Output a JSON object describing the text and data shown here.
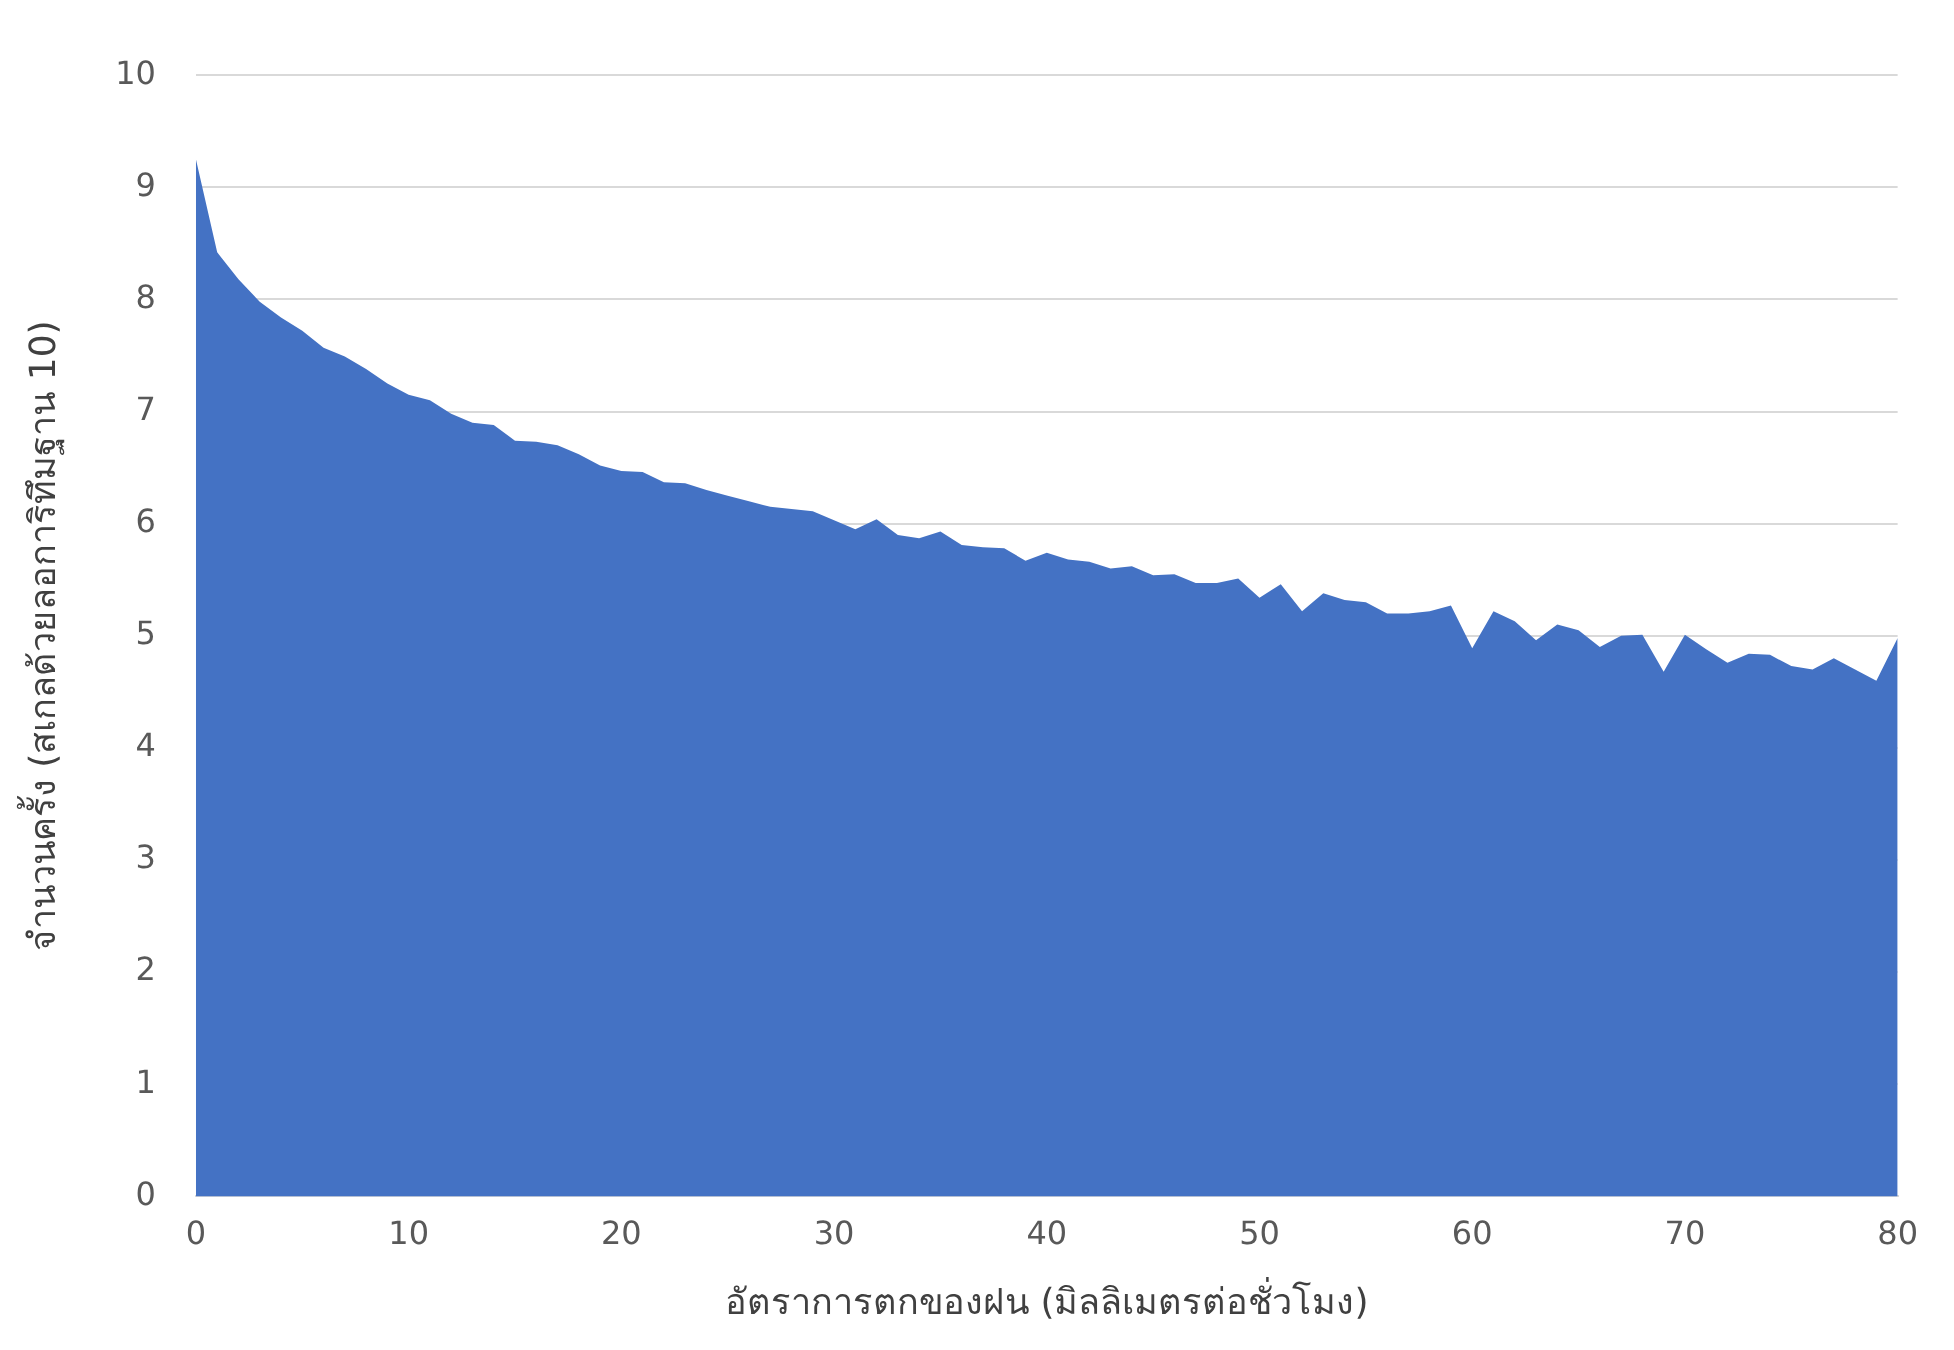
{
  "chart_data": {
    "type": "area",
    "xlabel": "อัตราการตกของฝน (มิลลิเมตรต่อชั่วโมง)",
    "ylabel": "จำนวนครั้ง (สเกลด้วยลอการิทึมฐาน 10)",
    "x": [
      0,
      1,
      2,
      3,
      4,
      5,
      6,
      7,
      8,
      9,
      10,
      11,
      12,
      13,
      14,
      15,
      16,
      17,
      18,
      19,
      20,
      21,
      22,
      23,
      24,
      25,
      26,
      27,
      28,
      29,
      30,
      31,
      32,
      33,
      34,
      35,
      36,
      37,
      38,
      39,
      40,
      41,
      42,
      43,
      44,
      45,
      46,
      47,
      48,
      49,
      50,
      51,
      52,
      53,
      54,
      55,
      56,
      57,
      58,
      59,
      60,
      61,
      62,
      63,
      64,
      65,
      66,
      67,
      68,
      69,
      70,
      71,
      72,
      73,
      74,
      75,
      76,
      77,
      78,
      79,
      80
    ],
    "series": [
      {
        "color": "#4472c4",
        "values": [
          9.25,
          8.42,
          8.18,
          7.98,
          7.84,
          7.72,
          7.57,
          7.49,
          7.38,
          7.25,
          7.15,
          7.1,
          6.98,
          6.9,
          6.88,
          6.74,
          6.73,
          6.7,
          6.62,
          6.52,
          6.47,
          6.46,
          6.37,
          6.36,
          6.3,
          6.25,
          6.2,
          6.15,
          6.13,
          6.11,
          6.03,
          5.95,
          6.04,
          5.9,
          5.87,
          5.93,
          5.81,
          5.79,
          5.78,
          5.67,
          5.74,
          5.68,
          5.66,
          5.6,
          5.62,
          5.54,
          5.55,
          5.47,
          5.47,
          5.51,
          5.34,
          5.46,
          5.22,
          5.38,
          5.32,
          5.3,
          5.2,
          5.2,
          5.22,
          5.27,
          4.89,
          5.22,
          5.13,
          4.96,
          5.1,
          5.05,
          4.9,
          5.0,
          5.01,
          4.68,
          5.01,
          4.88,
          4.76,
          4.84,
          4.83,
          4.73,
          4.7,
          4.8,
          4.7,
          4.6,
          4.98
        ]
      }
    ],
    "xlim": [
      0,
      80
    ],
    "xticks": [
      0,
      10,
      20,
      30,
      40,
      50,
      60,
      70,
      80
    ],
    "ylim": [
      0,
      10
    ],
    "yticks": [
      0,
      1,
      2,
      3,
      4,
      5,
      6,
      7,
      8,
      9,
      10
    ],
    "grid": "y",
    "legend": false
  }
}
